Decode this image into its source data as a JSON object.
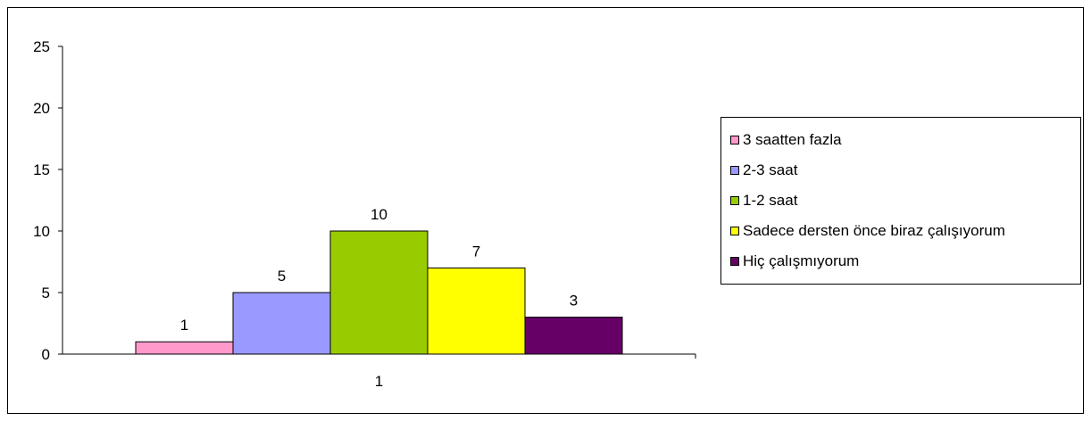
{
  "chart_data": {
    "type": "bar",
    "categories": [
      "1"
    ],
    "series": [
      {
        "name": "3 saatten fazla",
        "values": [
          1
        ],
        "color": "#ff99cc"
      },
      {
        "name": "2-3 saat",
        "values": [
          5
        ],
        "color": "#9999ff"
      },
      {
        "name": "1-2 saat",
        "values": [
          10
        ],
        "color": "#99cc00"
      },
      {
        "name": "Sadece dersten önce biraz çalışıyorum",
        "values": [
          7
        ],
        "color": "#ffff00"
      },
      {
        "name": "Hiç çalışmıyorum",
        "values": [
          3
        ],
        "color": "#660066"
      }
    ],
    "title": "",
    "xlabel": "",
    "ylabel": "",
    "ylim": [
      0,
      25
    ],
    "yticks": [
      "0",
      "5",
      "10",
      "15",
      "20",
      "25"
    ],
    "data_labels": [
      "1",
      "5",
      "10",
      "7",
      "3"
    ],
    "grid": false,
    "legend_position": "right"
  }
}
